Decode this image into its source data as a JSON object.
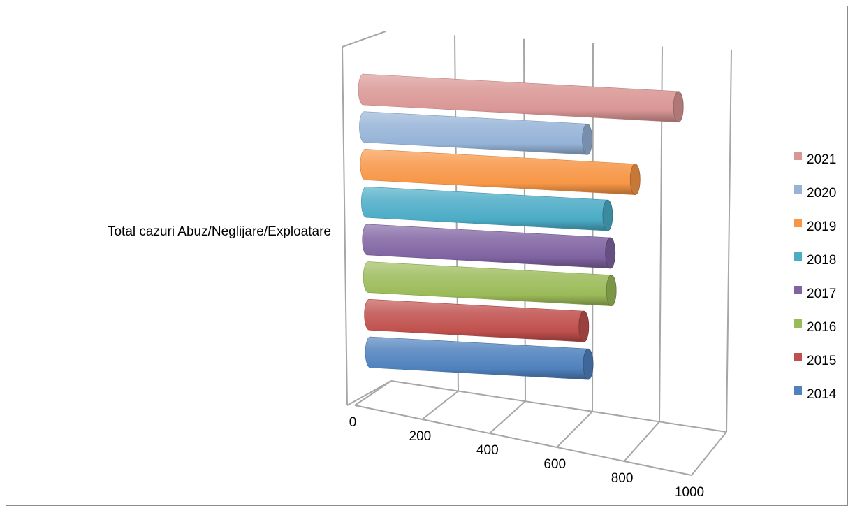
{
  "chart_data": {
    "type": "bar",
    "style": "3d-horizontal-cylinder",
    "categories": [
      "Total cazuri Abuz/Neglijare/Exploatare"
    ],
    "series": [
      {
        "name": "2014",
        "values": [
          650
        ],
        "color": "#4F81BD"
      },
      {
        "name": "2015",
        "values": [
          640
        ],
        "color": "#C0504D"
      },
      {
        "name": "2016",
        "values": [
          725
        ],
        "color": "#9BBB59"
      },
      {
        "name": "2017",
        "values": [
          725
        ],
        "color": "#8064A2"
      },
      {
        "name": "2018",
        "values": [
          720
        ],
        "color": "#4BACC6"
      },
      {
        "name": "2019",
        "values": [
          805
        ],
        "color": "#F79646"
      },
      {
        "name": "2020",
        "values": [
          665
        ],
        "color": "#95B3D7"
      },
      {
        "name": "2021",
        "values": [
          940
        ],
        "color": "#D99694"
      }
    ],
    "x_ticks": [
      "0",
      "200",
      "400",
      "600",
      "800",
      "1000"
    ],
    "xlim": [
      0,
      1000
    ],
    "grid": true,
    "legend": "right"
  }
}
